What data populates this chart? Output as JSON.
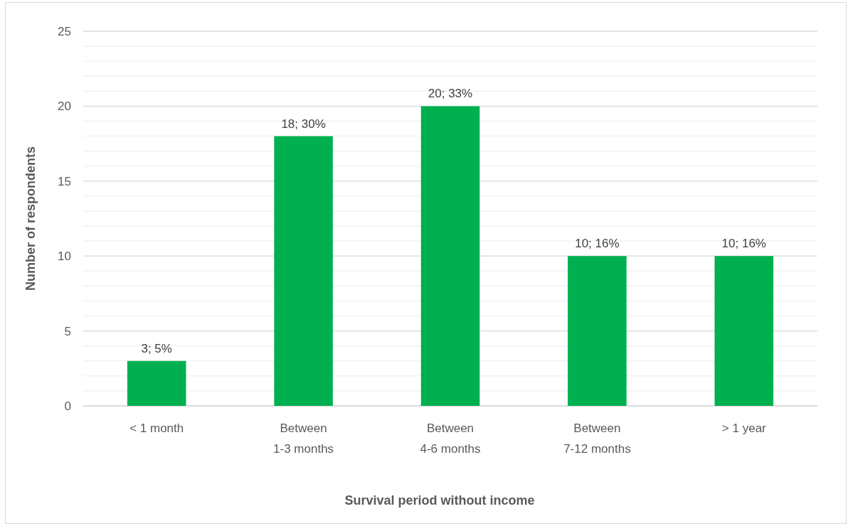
{
  "chart_data": {
    "type": "bar",
    "categories": [
      "< 1 month",
      "Between 1-3 months",
      "Between 4-6 months",
      "Between 7-12 months",
      "> 1 year"
    ],
    "values": [
      3,
      18,
      20,
      10,
      10
    ],
    "value_labels": [
      "3; 5%",
      "18; 30%",
      "20; 33%",
      "10; 16%",
      "10; 16%"
    ],
    "color": "#00b050",
    "xlabel": "Survival period without income",
    "ylabel": "Number of respondents",
    "ylim": [
      0,
      25
    ],
    "yticks": [
      0,
      {
        "value": 1,
        "label": null
      },
      {
        "value": 2,
        "label": null
      },
      {
        "value": 3,
        "label": null
      },
      {
        "value": 4,
        "label": null
      },
      5,
      {
        "value": 6,
        "label": null
      },
      {
        "value": 7,
        "label": null
      },
      {
        "value": 8,
        "label": null
      },
      {
        "value": 9,
        "label": null
      },
      10,
      {
        "value": 11,
        "label": null
      },
      {
        "value": 12,
        "label": null
      },
      {
        "value": 13,
        "label": null
      },
      {
        "value": 14,
        "label": null
      },
      15,
      {
        "value": 16,
        "label": null
      },
      {
        "value": 17,
        "label": null
      },
      {
        "value": 18,
        "label": null
      },
      {
        "value": 19,
        "label": null
      },
      20,
      {
        "value": 21,
        "label": null
      },
      {
        "value": 22,
        "label": null
      },
      {
        "value": 23,
        "label": null
      },
      {
        "value": 24,
        "label": null
      },
      25
    ],
    "grid": "y"
  }
}
